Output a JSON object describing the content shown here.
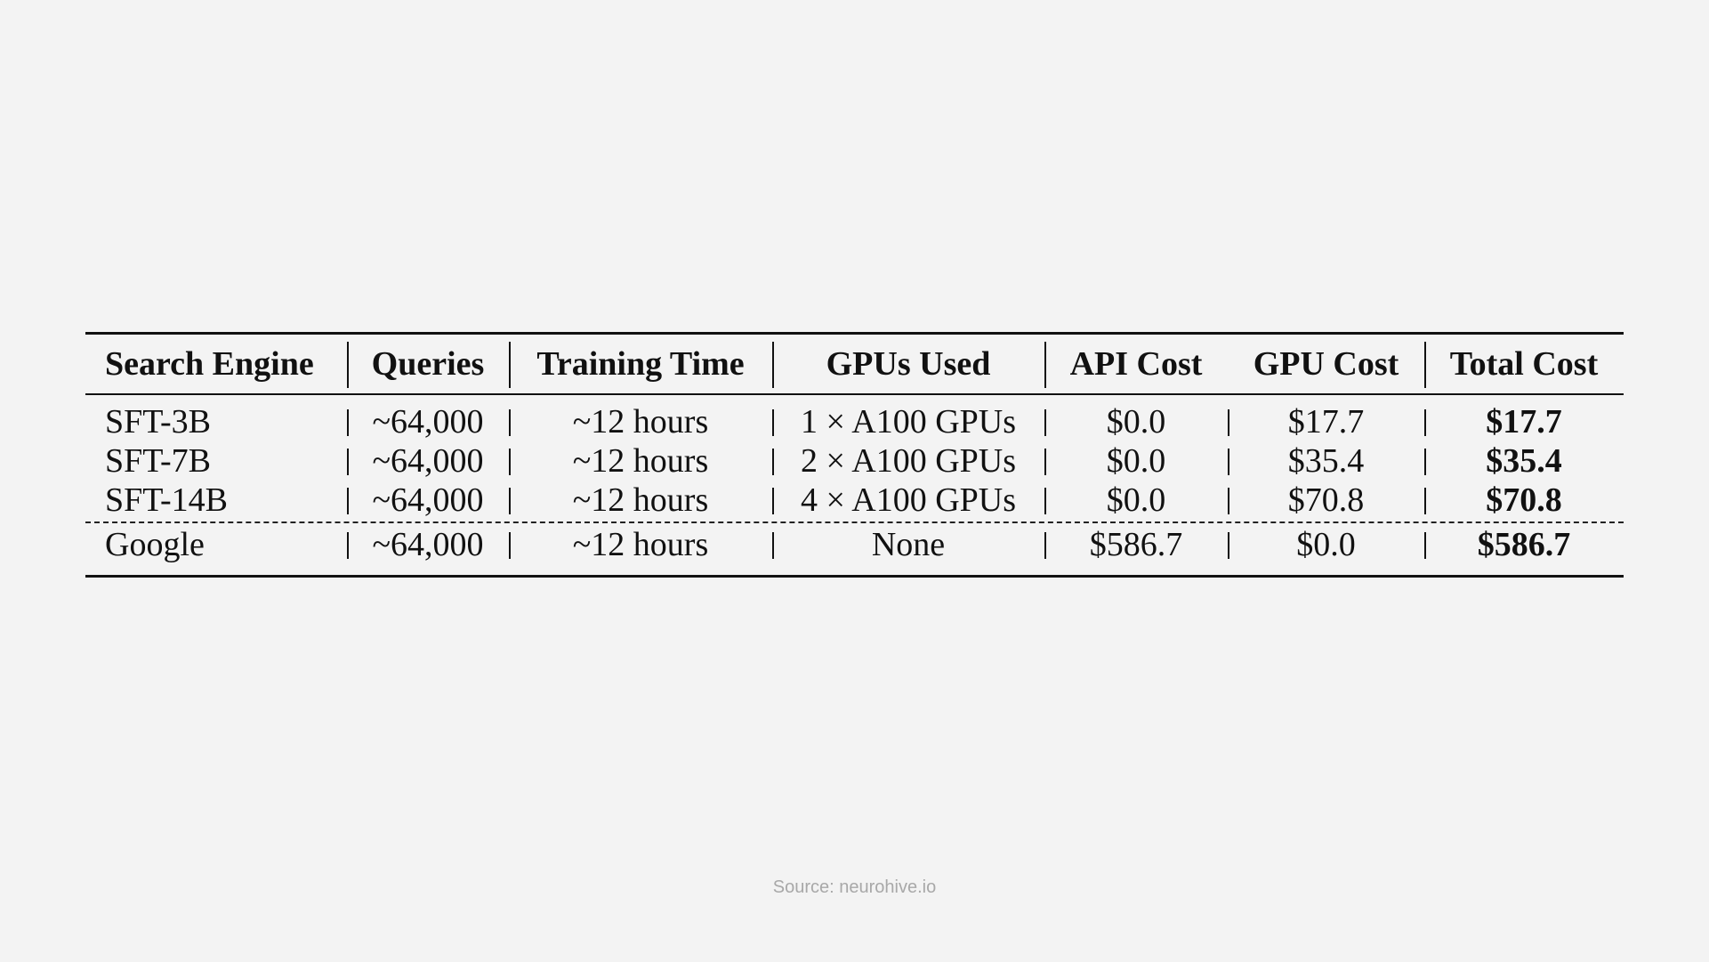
{
  "table": {
    "headers": [
      "Search Engine",
      "Queries",
      "Training Time",
      "GPUs Used",
      "API Cost",
      "GPU Cost",
      "Total Cost"
    ],
    "rows": [
      {
        "engine": "SFT-3B",
        "queries": "~64,000",
        "time": "~12 hours",
        "gpus": "1 × A100 GPUs",
        "api_cost": "$0.0",
        "gpu_cost": "$17.7",
        "total_cost": "$17.7"
      },
      {
        "engine": "SFT-7B",
        "queries": "~64,000",
        "time": "~12 hours",
        "gpus": "2 × A100 GPUs",
        "api_cost": "$0.0",
        "gpu_cost": "$35.4",
        "total_cost": "$35.4"
      },
      {
        "engine": "SFT-14B",
        "queries": "~64,000",
        "time": "~12 hours",
        "gpus": "4 × A100 GPUs",
        "api_cost": "$0.0",
        "gpu_cost": "$70.8",
        "total_cost": "$70.8"
      },
      {
        "engine": "Google",
        "queries": "~64,000",
        "time": "~12 hours",
        "gpus": "None",
        "api_cost": "$586.7",
        "gpu_cost": "$0.0",
        "total_cost": "$586.7"
      }
    ]
  },
  "source": "Source: neurohive.io",
  "colors": {
    "background": "#f3f3f3",
    "text": "#111111",
    "source_text": "#a8a8a8"
  }
}
